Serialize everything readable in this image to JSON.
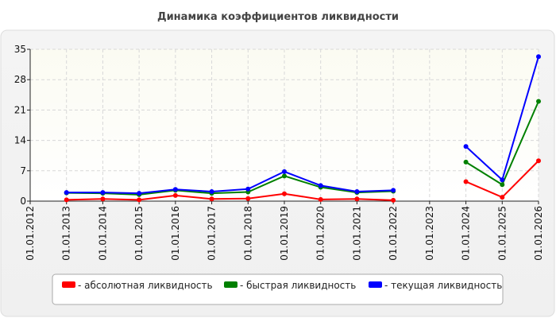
{
  "chart_data": {
    "type": "line",
    "title": "Динамика коэффициентов ликвидности",
    "xlabel": "",
    "ylabel": "",
    "ylim": [
      0,
      35
    ],
    "yticks": [
      "0",
      "7",
      "14",
      "21",
      "28",
      "35"
    ],
    "categories": [
      "01.01.2012",
      "01.01.2013",
      "01.01.2014",
      "01.01.2015",
      "01.01.2016",
      "01.01.2017",
      "01.01.2018",
      "01.01.2019",
      "01.01.2020",
      "01.01.2021",
      "01.01.2022",
      "01.01.2023",
      "01.01.2024",
      "01.01.2025",
      "01.01.2026"
    ],
    "grid": true,
    "legend_position": "bottom",
    "series": [
      {
        "name": "- абсолютная ликвидность",
        "color": "#ff0000",
        "values": [
          null,
          0.3,
          0.5,
          0.3,
          1.3,
          0.5,
          0.6,
          1.7,
          0.4,
          0.5,
          0.2,
          null,
          4.5,
          0.9,
          9.3
        ]
      },
      {
        "name": "- быстрая ликвидность",
        "color": "#008000",
        "values": [
          null,
          1.9,
          1.8,
          1.5,
          2.5,
          1.8,
          2.1,
          5.8,
          3.2,
          2.0,
          2.3,
          null,
          9.0,
          3.8,
          23.0
        ]
      },
      {
        "name": "- текущая ликвидность",
        "color": "#0000ff",
        "values": [
          null,
          2.0,
          2.0,
          1.8,
          2.7,
          2.2,
          2.8,
          6.8,
          3.6,
          2.2,
          2.5,
          null,
          12.6,
          4.9,
          33.3
        ]
      }
    ]
  }
}
